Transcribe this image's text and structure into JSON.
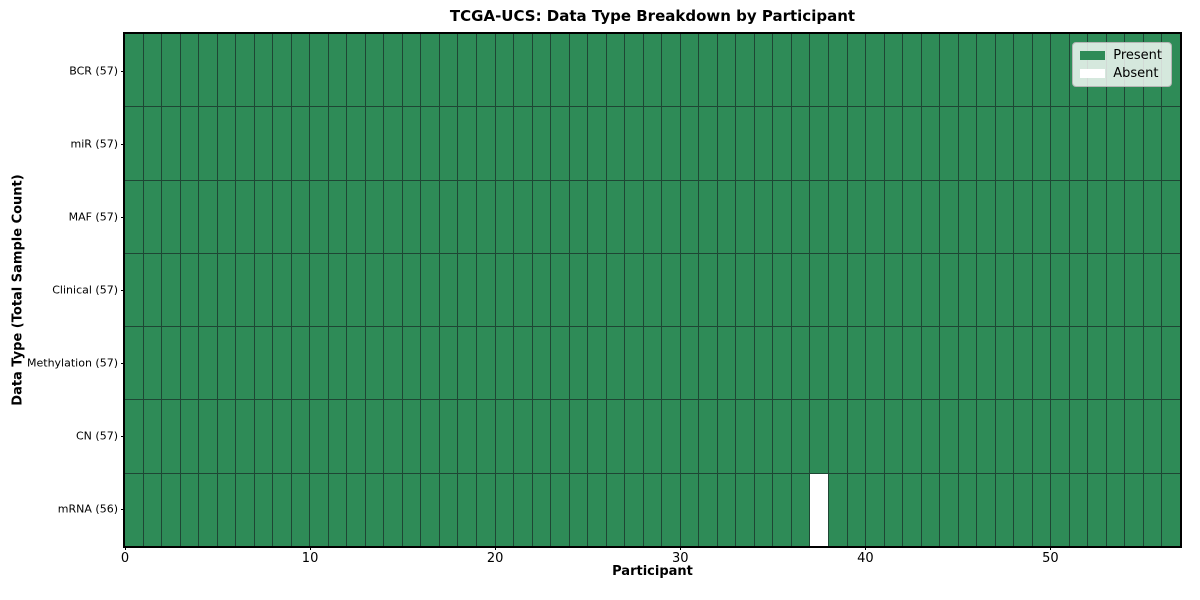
{
  "chart_data": {
    "type": "heatmap",
    "title": "TCGA-UCS: Data Type Breakdown by Participant",
    "xlabel": "Participant",
    "ylabel": "Data Type (Total Sample Count)",
    "n_participants": 57,
    "x_range": [
      0,
      57
    ],
    "xticks": [
      0,
      10,
      20,
      30,
      40,
      50
    ],
    "rows": [
      {
        "name": "BCR",
        "label": "BCR (57)",
        "total": 57,
        "absent_cols": []
      },
      {
        "name": "miR",
        "label": "miR (57)",
        "total": 57,
        "absent_cols": []
      },
      {
        "name": "MAF",
        "label": "MAF (57)",
        "total": 57,
        "absent_cols": []
      },
      {
        "name": "Clinical",
        "label": "Clinical (57)",
        "total": 57,
        "absent_cols": []
      },
      {
        "name": "Methylation",
        "label": "Methylation (57)",
        "total": 57,
        "absent_cols": []
      },
      {
        "name": "CN",
        "label": "CN (57)",
        "total": 57,
        "absent_cols": []
      },
      {
        "name": "mRNA",
        "label": "mRNA (56)",
        "total": 56,
        "absent_cols": [
          37
        ]
      }
    ],
    "legend": [
      {
        "label": "Present",
        "color": "#2e8b57"
      },
      {
        "label": "Absent",
        "color": "#ffffff"
      }
    ],
    "legend_position": "upper right",
    "colors": {
      "present": "#2e8b57",
      "absent": "#ffffff",
      "cell_border": "#1e4634",
      "axis": "#000000"
    },
    "grid": "cell-borders"
  }
}
